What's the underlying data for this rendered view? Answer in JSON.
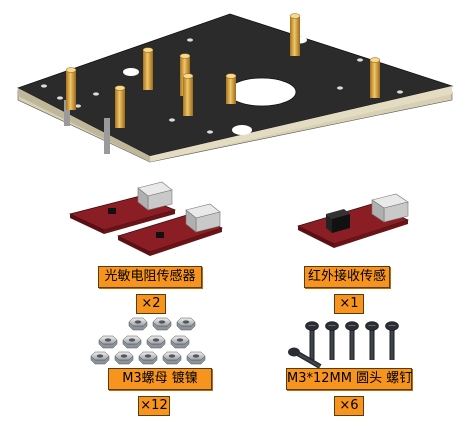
{
  "labels": {
    "light_sensor": "光敏电阻传感器",
    "light_sensor_qty": "×2",
    "ir_receiver": "红外接收传感",
    "ir_receiver_qty": "×1",
    "nut": "M3螺母 镀镍",
    "nut_qty": "×12",
    "screw": "M3*12MM 圆头 螺钉",
    "screw_qty": "×6"
  },
  "colors": {
    "label_bg": "#f7941d",
    "plate": "#2b2b2b",
    "plate_edge": "#cfc6a8",
    "standoff": "#d9a441",
    "pcb": "#8b1e24",
    "nut": "#c8ccd2",
    "screw": "#2a2d33"
  },
  "icons": [
    "base-plate",
    "brass-standoff",
    "light-sensor-module",
    "ir-receiver-module",
    "hex-nut",
    "round-head-screw"
  ]
}
